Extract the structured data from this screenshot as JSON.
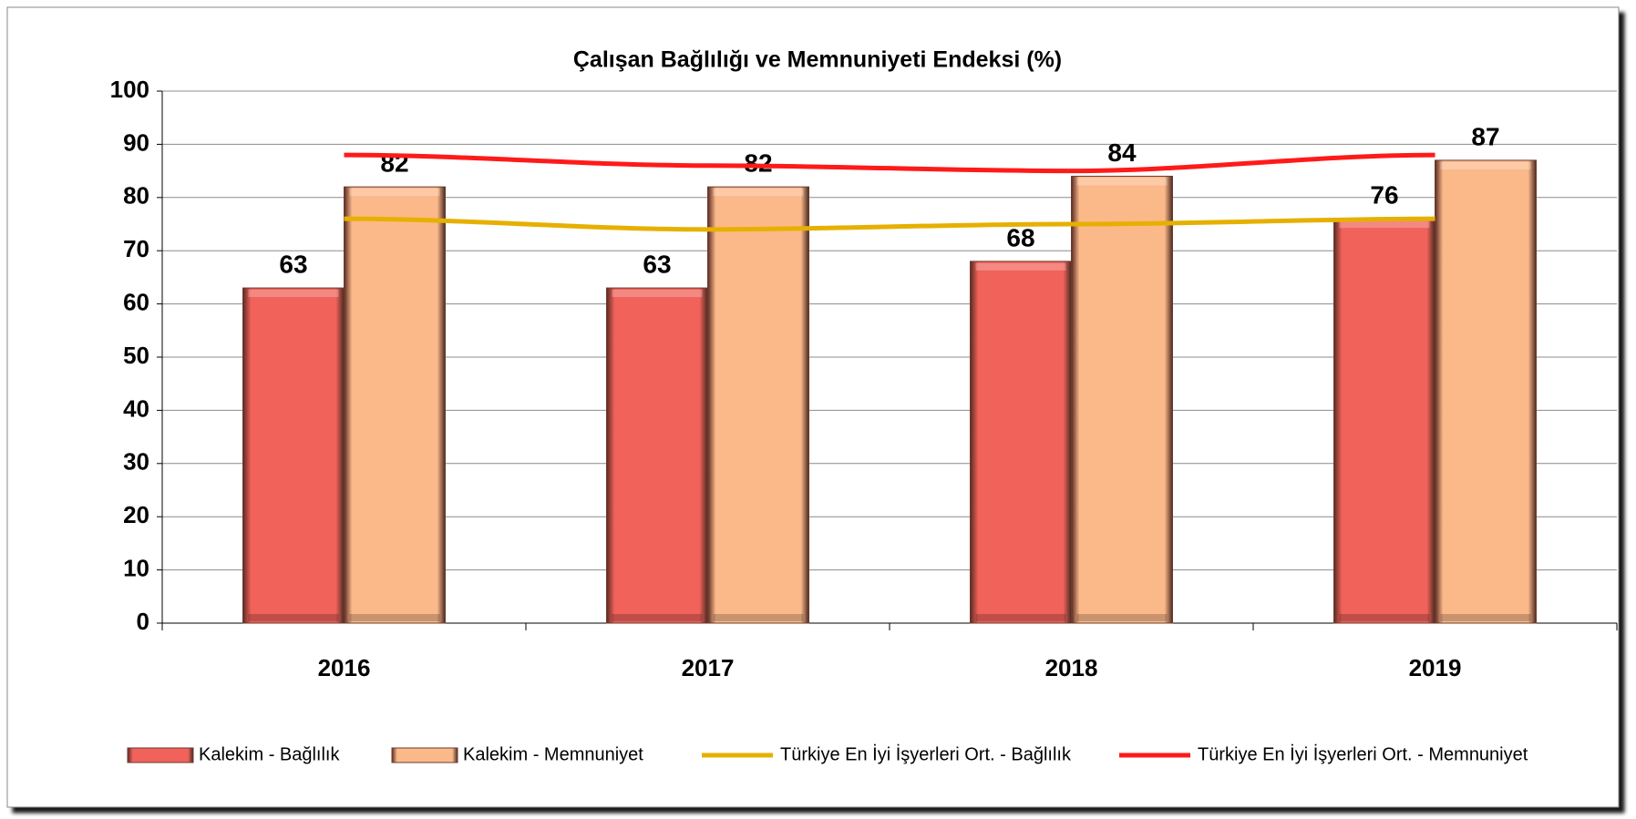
{
  "chart_data": {
    "type": "bar",
    "title": "Çalışan Bağlılığı ve Memnuniyeti Endeksi (%)",
    "categories": [
      "2016",
      "2017",
      "2018",
      "2019"
    ],
    "series": [
      {
        "name": "Kalekim - Bağlılık",
        "type": "bar",
        "color": "#f0625a",
        "values": [
          63,
          63,
          68,
          76
        ],
        "data_labels": true
      },
      {
        "name": "Kalekim - Memnuniyet",
        "type": "bar",
        "color": "#fbb98a",
        "values": [
          82,
          82,
          84,
          87
        ],
        "data_labels": true
      },
      {
        "name": "Türkiye En İyi İşyerleri Ort. - Bağlılık",
        "type": "line",
        "color": "#e6b000",
        "values": [
          76,
          74,
          75,
          76
        ],
        "data_labels": false
      },
      {
        "name": "Türkiye En İyi İşyerleri Ort. - Memnuniyet",
        "type": "line",
        "color": "#ff1a1a",
        "values": [
          88,
          86,
          85,
          88
        ],
        "data_labels": false
      }
    ],
    "ylim": [
      0,
      100
    ],
    "yticks": [
      0,
      10,
      20,
      30,
      40,
      50,
      60,
      70,
      80,
      90,
      100
    ],
    "grid": true,
    "legend": "bottom"
  }
}
